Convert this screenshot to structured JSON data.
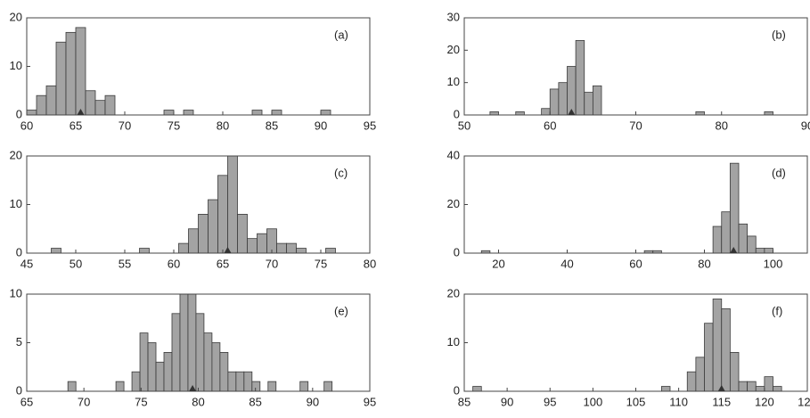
{
  "chart_data": [
    {
      "type": "histogram",
      "label": "(a)",
      "color": "#a3a3a3",
      "marker": 65.5,
      "xlim": [
        60,
        95
      ],
      "xticks": [
        60,
        65,
        70,
        75,
        80,
        85,
        90,
        95
      ],
      "ylim": [
        0,
        20
      ],
      "yticks": [
        0,
        10,
        20
      ],
      "bins": [
        60,
        61,
        62,
        63,
        64,
        65,
        66,
        67,
        68,
        69,
        70,
        71,
        72,
        73,
        74,
        75,
        76,
        77,
        78,
        79,
        80,
        81,
        82,
        83,
        84,
        85,
        86,
        87,
        88,
        89,
        90,
        91,
        92
      ],
      "counts": [
        1,
        4,
        6,
        15,
        17,
        18,
        5,
        3,
        4,
        0,
        0,
        0,
        0,
        0,
        1,
        0,
        1,
        0,
        0,
        0,
        0,
        0,
        0,
        1,
        0,
        1,
        0,
        0,
        0,
        0,
        1,
        0
      ]
    },
    {
      "type": "histogram",
      "label": "(b)",
      "color": "#a3a3a3",
      "marker": 62.5,
      "xlim": [
        50,
        90
      ],
      "xticks": [
        50,
        60,
        70,
        80,
        90
      ],
      "ylim": [
        0,
        30
      ],
      "yticks": [
        0,
        10,
        20,
        30
      ],
      "bins": [
        53,
        54,
        55,
        56,
        57,
        58,
        59,
        60,
        61,
        62,
        63,
        64,
        65,
        66,
        67,
        68,
        69,
        70,
        71,
        72,
        73,
        74,
        75,
        76,
        77,
        78,
        79,
        80,
        81,
        82,
        83,
        84,
        85,
        86
      ],
      "counts": [
        1,
        0,
        0,
        1,
        0,
        0,
        2,
        8,
        10,
        15,
        23,
        7,
        9,
        0,
        0,
        0,
        0,
        0,
        0,
        0,
        0,
        0,
        0,
        0,
        1,
        0,
        0,
        0,
        0,
        0,
        0,
        0,
        1
      ]
    },
    {
      "type": "histogram",
      "label": "(c)",
      "color": "#a3a3a3",
      "marker": 65.5,
      "xlim": [
        45,
        80
      ],
      "xticks": [
        45,
        50,
        55,
        60,
        65,
        70,
        75,
        80
      ],
      "ylim": [
        0,
        20
      ],
      "yticks": [
        0,
        10,
        20
      ],
      "bins": [
        47.5,
        48.5,
        49.5,
        50.5,
        51.5,
        52.5,
        53.5,
        54.5,
        55.5,
        56.5,
        57.5,
        58.5,
        59.5,
        60.5,
        61.5,
        62.5,
        63.5,
        64.5,
        65.5,
        66.5,
        67.5,
        68.5,
        69.5,
        70.5,
        71.5,
        72.5,
        73.5,
        74.5,
        75.5,
        76.5
      ],
      "counts": [
        1,
        0,
        0,
        0,
        0,
        0,
        0,
        0,
        0,
        1,
        0,
        0,
        0,
        2,
        5,
        8,
        11,
        16,
        20,
        8,
        3,
        4,
        5,
        2,
        2,
        1,
        0,
        0,
        1
      ]
    },
    {
      "type": "histogram",
      "label": "(d)",
      "color": "#a3a3a3",
      "marker": 88.5,
      "xlim": [
        10,
        110
      ],
      "xticks": [
        20,
        40,
        60,
        80,
        100
      ],
      "ylim": [
        0,
        40
      ],
      "yticks": [
        0,
        20,
        40
      ],
      "bins": [
        15,
        17.5,
        20,
        22.5,
        25,
        27.5,
        30,
        32.5,
        35,
        37.5,
        40,
        42.5,
        45,
        47.5,
        50,
        52.5,
        55,
        57.5,
        60,
        62.5,
        65,
        67.5,
        70,
        72.5,
        75,
        77.5,
        80,
        82.5,
        85,
        87.5,
        90,
        92.5,
        95,
        97.5,
        100
      ],
      "counts": [
        1,
        0,
        0,
        0,
        0,
        0,
        0,
        0,
        0,
        0,
        0,
        0,
        0,
        0,
        0,
        0,
        0,
        0,
        0,
        1,
        1,
        0,
        0,
        0,
        0,
        0,
        0,
        11,
        17,
        37,
        12,
        7,
        2,
        2
      ]
    },
    {
      "type": "histogram",
      "label": "(e)",
      "color": "#a3a3a3",
      "marker": 79.5,
      "xlim": [
        65,
        95
      ],
      "xticks": [
        65,
        70,
        75,
        80,
        85,
        90,
        95
      ],
      "ylim": [
        0,
        10
      ],
      "yticks": [
        0,
        5,
        10
      ],
      "bins": [
        68.6,
        69.3,
        70,
        70.7,
        71.4,
        72.1,
        72.8,
        73.5,
        74.2,
        74.9,
        75.6,
        76.3,
        77,
        77.7,
        78.4,
        79.1,
        79.8,
        80.5,
        81.2,
        81.9,
        82.6,
        83.3,
        84,
        84.7,
        85.4,
        86.1,
        86.8,
        87.5,
        88.2,
        88.9,
        89.6,
        90.3,
        91,
        91.7
      ],
      "counts": [
        1,
        0,
        0,
        0,
        0,
        0,
        1,
        0,
        2,
        6,
        5,
        3,
        4,
        8,
        10,
        10,
        8,
        6,
        5,
        4,
        2,
        2,
        2,
        1,
        0,
        1,
        0,
        0,
        0,
        1,
        0,
        0,
        1
      ]
    },
    {
      "type": "histogram",
      "label": "(f)",
      "color": "#a3a3a3",
      "marker": 115,
      "xlim": [
        85,
        125
      ],
      "xticks": [
        85,
        90,
        95,
        100,
        105,
        110,
        115,
        120,
        125
      ],
      "ylim": [
        0,
        20
      ],
      "yticks": [
        0,
        10,
        20
      ],
      "bins": [
        86,
        87,
        88,
        89,
        90,
        91,
        92,
        93,
        94,
        95,
        96,
        97,
        98,
        99,
        100,
        101,
        102,
        103,
        104,
        105,
        106,
        107,
        108,
        109,
        110,
        111,
        112,
        113,
        114,
        115,
        116,
        117,
        118,
        119,
        120,
        121,
        122
      ],
      "counts": [
        1,
        0,
        0,
        0,
        0,
        0,
        0,
        0,
        0,
        0,
        0,
        0,
        0,
        0,
        0,
        0,
        0,
        0,
        0,
        0,
        0,
        0,
        1,
        0,
        0,
        4,
        7,
        14,
        19,
        17,
        8,
        2,
        2,
        1,
        3,
        1
      ]
    }
  ]
}
